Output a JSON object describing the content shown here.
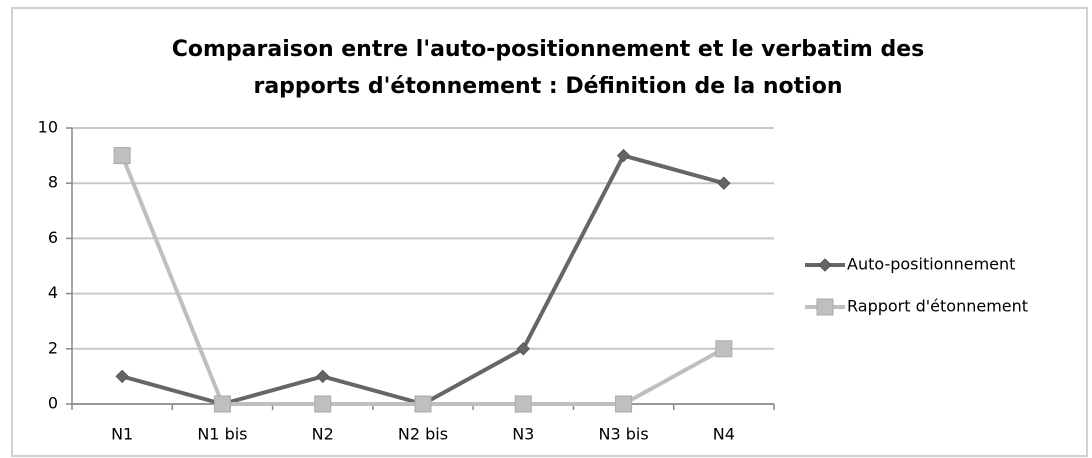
{
  "chart_data": {
    "type": "line",
    "title": [
      "Comparaison entre l'auto-positionnement et le verbatim des",
      "rapports d'étonnement : Définition de la notion"
    ],
    "categories": [
      "N1",
      "N1 bis",
      "N2",
      "N2 bis",
      "N3",
      "N3 bis",
      "N4"
    ],
    "series": [
      {
        "name": "Auto-positionnement",
        "color": "#666666",
        "marker": "diamond",
        "values": [
          1,
          0,
          1,
          0,
          2,
          9,
          8
        ]
      },
      {
        "name": "Rapport d'étonnement",
        "color": "#bfbfbf",
        "marker": "square",
        "values": [
          9,
          0,
          0,
          0,
          0,
          0,
          2
        ]
      }
    ],
    "ylim": [
      0,
      10
    ],
    "yticks": [
      0,
      2,
      4,
      6,
      8,
      10
    ],
    "grid": true,
    "legend": "right"
  }
}
